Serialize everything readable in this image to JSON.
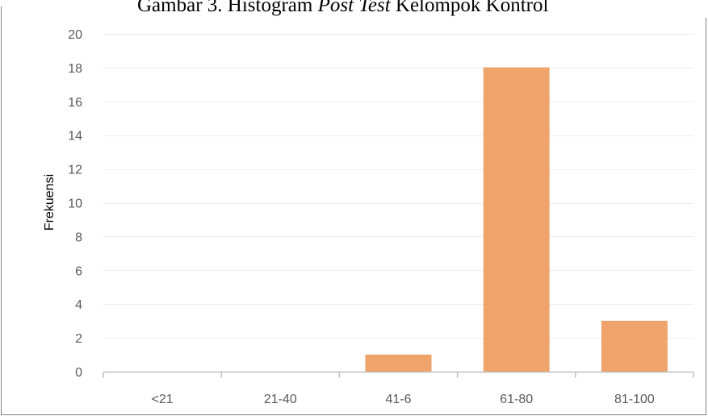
{
  "title": {
    "prefix": "Gambar 3. Histogram ",
    "italic": "Post Test",
    "suffix": " Kelompok Kontrol"
  },
  "chart_data": {
    "type": "bar",
    "title": "Gambar 3. Histogram Post Test Kelompok Kontrol",
    "categories": [
      "<21",
      "21-40",
      "41-6",
      "61-80",
      "81-100"
    ],
    "values": [
      0,
      0,
      1,
      18,
      3
    ],
    "xlabel": "",
    "ylabel": "Frekuensi",
    "ylim": [
      0,
      20
    ],
    "yticks": [
      0,
      2,
      4,
      6,
      8,
      10,
      12,
      14,
      16,
      18,
      20
    ],
    "grid": true,
    "legend": "none",
    "colors": {
      "bar": "#F0A46C",
      "bar_outline": "#E2935B",
      "gridline": "#EDEDED",
      "axis": "#BFBFBF"
    }
  }
}
